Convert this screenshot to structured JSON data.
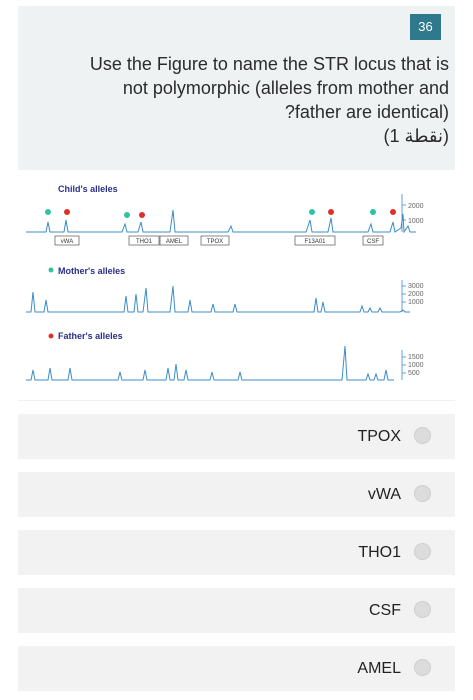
{
  "question": {
    "number": "36",
    "lines": [
      "Use the Figure to name the STR locus that is",
      "not polymorphic (alleles from mother and",
      "?father are identical)"
    ],
    "points": "(1 نقطة)"
  },
  "figure": {
    "child_label": "Child's alleles",
    "mother_label": "Mother's alleles",
    "father_label": "Father's alleles",
    "loci": [
      "vWA",
      "THO1",
      "AMEL",
      "TPOX",
      "F13A01",
      "CSF"
    ],
    "child_scale": [
      "2000",
      "1000"
    ],
    "mother_scale": [
      "3000",
      "2000",
      "1000"
    ],
    "father_scale": [
      "1500",
      "1000",
      "500"
    ],
    "colors": {
      "mother": "#2ec4a0",
      "father": "#e0302a",
      "trace": "#3c8cc8",
      "label": "#2a2f8a"
    }
  },
  "options": [
    {
      "label": "TPOX"
    },
    {
      "label": "vWA"
    },
    {
      "label": "THO1"
    },
    {
      "label": "CSF"
    },
    {
      "label": "AMEL"
    }
  ]
}
